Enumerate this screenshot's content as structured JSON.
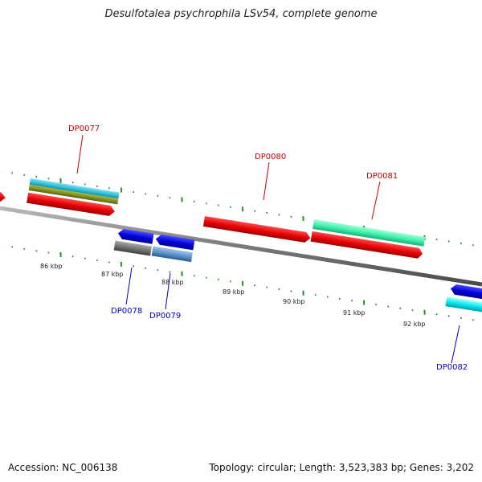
{
  "title": "Desulfotalea psychrophila LSv54, complete genome",
  "accession_text": "Accession: NC_006138",
  "topology_text": "Topology: circular; Length: 3,523,383 bp; Genes: 3,202",
  "colors": {
    "backbone": "#8a8a8a",
    "tick": "#2e8b2e",
    "label_top": "#cc0000",
    "label_bottom": "#0000cc"
  },
  "scale_labels": [
    "86 kbp",
    "87 kbp",
    "88 kbp",
    "89 kbp",
    "90 kbp",
    "91 kbp",
    "92 kbp"
  ],
  "gene_labels": [
    {
      "id": "DP0077",
      "strand": "top"
    },
    {
      "id": "DP0078",
      "strand": "bottom"
    },
    {
      "id": "DP0079",
      "strand": "bottom"
    },
    {
      "id": "DP0080",
      "strand": "top"
    },
    {
      "id": "DP0081",
      "strand": "top"
    },
    {
      "id": "DP0082",
      "strand": "bottom"
    }
  ]
}
